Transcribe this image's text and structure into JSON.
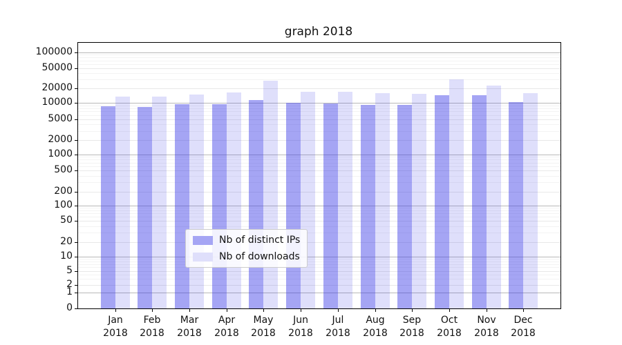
{
  "title": "graph 2018",
  "chart_data": {
    "type": "bar",
    "title": "graph 2018",
    "categories": [
      "Jan 2018",
      "Feb 2018",
      "Mar 2018",
      "Apr 2018",
      "May 2018",
      "Jun 2018",
      "Jul 2018",
      "Aug 2018",
      "Sep 2018",
      "Oct 2018",
      "Nov 2018",
      "Dec 2018"
    ],
    "series": [
      {
        "name": "Nb of distinct IPs",
        "values": [
          8600,
          8400,
          9400,
          9400,
          11300,
          9900,
          9700,
          9100,
          9100,
          14400,
          14400,
          10300
        ]
      },
      {
        "name": "Nb of downloads",
        "values": [
          13600,
          13300,
          15000,
          16300,
          28000,
          17000,
          16800,
          16000,
          15500,
          30000,
          23000,
          16000
        ]
      }
    ],
    "yscale": "symlog",
    "yticks": [
      0,
      1,
      2,
      5,
      10,
      20,
      50,
      100,
      200,
      500,
      1000,
      2000,
      5000,
      10000,
      20000,
      50000,
      100000
    ],
    "ylim": [
      0,
      100000
    ],
    "xlabel": "",
    "ylabel": "",
    "grid": true,
    "legend_position": "lower center"
  },
  "colors": {
    "bar_ips": "rgba(55,55,230,0.45)",
    "bar_downloads": "rgba(55,55,230,0.16)",
    "bar_ips_solid": "#a5a5f4",
    "bar_downloads_solid": "#dfdffb",
    "grid_major": "#b8b8b8",
    "grid_sub": "#e8e8e8",
    "grid_minor": "#f3f3f3",
    "spine": "#000000"
  }
}
